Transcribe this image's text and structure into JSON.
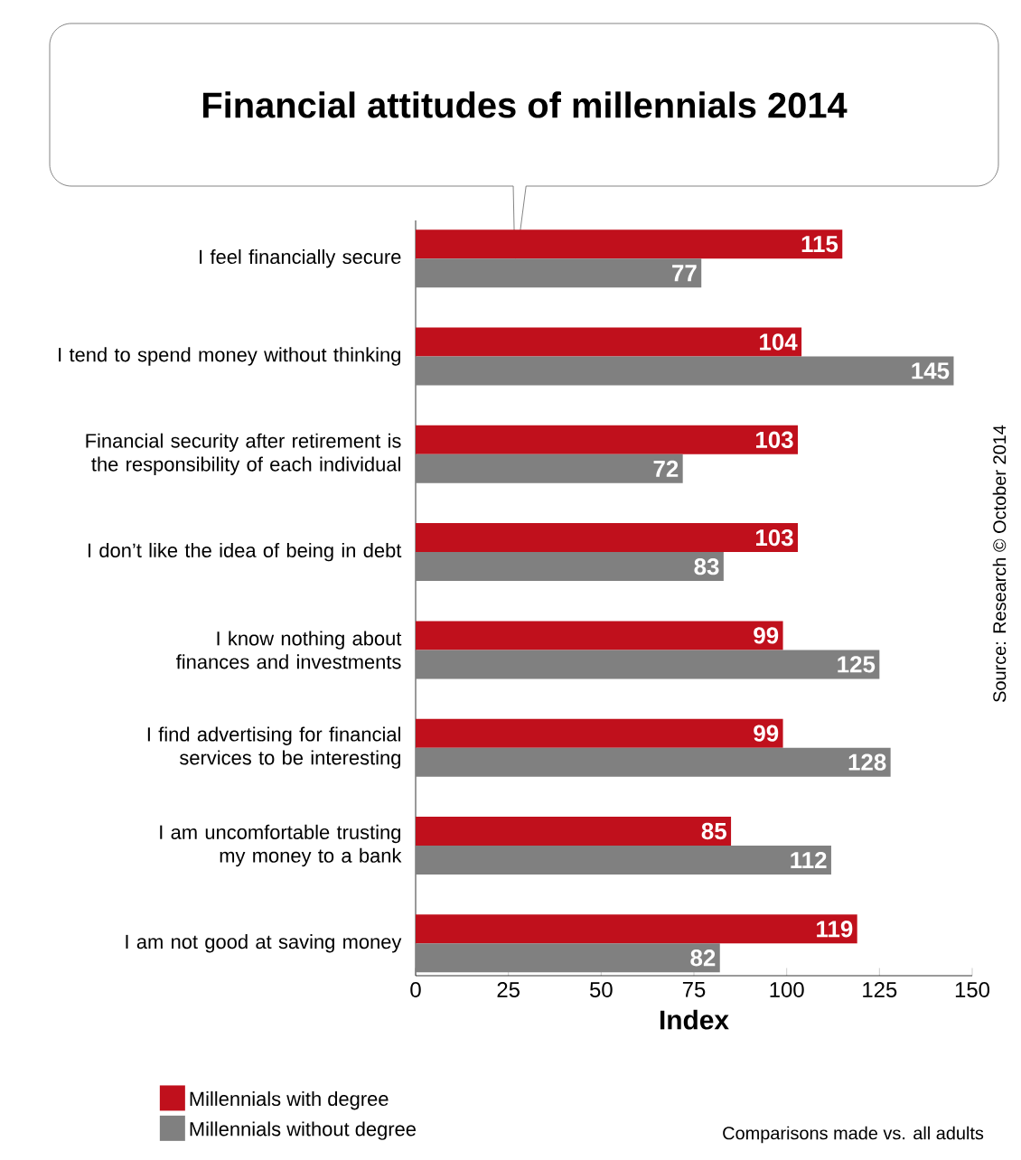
{
  "chart_data": {
    "type": "bar",
    "orientation": "horizontal",
    "title": "Financial attitudes of millennials 2014",
    "categories": [
      "I feel financially secure",
      "I tend to spend money without thinking",
      "Financial security after retirement is the responsibility of each individual",
      "I don’t like the idea of being in debt",
      "I know nothing about finances and investments",
      "I find advertising for financial services to be interesting",
      "I am uncomfortable trusting my money to a bank",
      "I am not good at saving money"
    ],
    "series": [
      {
        "name": "Millennials with degree",
        "color": "#c0101c",
        "values": [
          115,
          104,
          103,
          103,
          99,
          99,
          85,
          119
        ]
      },
      {
        "name": "Millennials without degree",
        "color": "#808080",
        "values": [
          77,
          145,
          72,
          83,
          125,
          128,
          112,
          82
        ]
      }
    ],
    "xlim": [
      0,
      150
    ],
    "xticks": [
      0,
      25,
      50,
      75,
      100,
      125,
      150
    ],
    "xlabel": "Index",
    "legend": "bottom left",
    "data_labels": true,
    "annotations": [
      "Source: Research © October 2014",
      "Comparisons made vs. all adults"
    ]
  }
}
